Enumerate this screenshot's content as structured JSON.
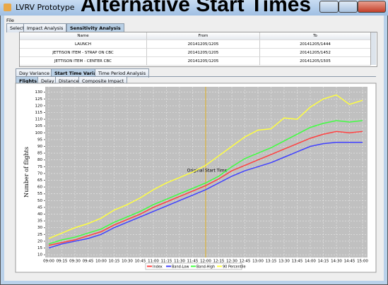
{
  "window": {
    "title": "LVRV Prototype"
  },
  "menu": [
    "File"
  ],
  "tabs": [
    "Select",
    "Impact Analysis",
    "Sensitivity Analysis"
  ],
  "table": {
    "columns": [
      "Name",
      "From",
      "To"
    ],
    "rows": [
      [
        "LAUNCH",
        "20141205/1205",
        "20141205/1444"
      ],
      [
        "JETTISON ITEM - STRAP ON CBC",
        "20141205/1205",
        "20141205/1452"
      ],
      [
        "JETTISON ITEM - CENTER CBC",
        "20141205/1205",
        "20141205/1505"
      ]
    ]
  },
  "subtabs": [
    "Day Variance",
    "Start Time Variance",
    "Time Period Analysis"
  ],
  "chart_tabs": [
    "Flights",
    "Delay",
    "Distance",
    "Composite Impact"
  ],
  "chart_data": {
    "type": "line",
    "title": "Alternative Start Times",
    "y_label": "Number of flights",
    "categories": [
      "09:00",
      "09:15",
      "09:30",
      "09:45",
      "10:00",
      "10:15",
      "10:30",
      "10:45",
      "11:00",
      "11:15",
      "11:30",
      "11:45",
      "12:00",
      "12:15",
      "12:30",
      "12:45",
      "13:00",
      "13:15",
      "13:30",
      "13:45",
      "14:00",
      "14:15",
      "14:30",
      "14:45",
      "15:00"
    ],
    "series": [
      {
        "name": "Index",
        "color": "#ff4040",
        "values": [
          17,
          19,
          21,
          24,
          27,
          32,
          36,
          40,
          45,
          49,
          53,
          57,
          61,
          66,
          72,
          76,
          80,
          84,
          88,
          92,
          96,
          99,
          101,
          100,
          101
        ]
      },
      {
        "name": "Band-Low",
        "color": "#4040ff",
        "values": [
          15,
          18,
          20,
          22,
          25,
          30,
          34,
          38,
          42,
          46,
          50,
          54,
          58,
          63,
          68,
          72,
          75,
          78,
          82,
          86,
          90,
          92,
          93,
          93,
          93
        ]
      },
      {
        "name": "Band-High",
        "color": "#40ff40",
        "values": [
          18,
          21,
          23,
          26,
          29,
          34,
          38,
          42,
          47,
          51,
          55,
          59,
          63,
          68,
          75,
          81,
          85,
          89,
          94,
          99,
          104,
          107,
          109,
          108,
          109
        ]
      },
      {
        "name": "90 Percentile",
        "color": "#ffff40",
        "values": [
          22,
          26,
          30,
          33,
          37,
          43,
          47,
          52,
          58,
          63,
          67,
          71,
          76,
          83,
          90,
          97,
          102,
          103,
          111,
          110,
          119,
          125,
          128,
          121,
          124
        ]
      }
    ],
    "annotations": [
      {
        "text": "Original Start Time",
        "x": "12:00"
      }
    ],
    "ylim": [
      8,
      134
    ],
    "yticks": [
      10,
      15,
      20,
      25,
      30,
      35,
      40,
      45,
      50,
      55,
      60,
      65,
      70,
      75,
      80,
      85,
      90,
      95,
      100,
      105,
      110,
      115,
      120,
      125,
      130
    ],
    "grid": true
  }
}
